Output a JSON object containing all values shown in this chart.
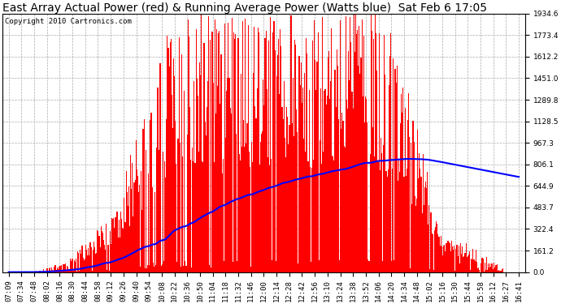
{
  "title": "East Array Actual Power (red) & Running Average Power (Watts blue)  Sat Feb 6 17:05",
  "copyright": "Copyright 2010 Cartronics.com",
  "ymax": 1934.6,
  "ymin": 0.0,
  "yticks": [
    0.0,
    161.2,
    322.4,
    483.7,
    644.9,
    806.1,
    967.3,
    1128.5,
    1289.8,
    1451.0,
    1612.2,
    1773.4,
    1934.6
  ],
  "xtick_labels": [
    "07:09",
    "07:34",
    "07:48",
    "08:02",
    "08:16",
    "08:30",
    "08:44",
    "08:58",
    "09:12",
    "09:26",
    "09:40",
    "09:54",
    "10:08",
    "10:22",
    "10:36",
    "10:50",
    "11:04",
    "11:18",
    "11:32",
    "11:46",
    "12:00",
    "12:14",
    "12:28",
    "12:42",
    "12:56",
    "13:10",
    "13:24",
    "13:38",
    "13:52",
    "14:06",
    "14:20",
    "14:34",
    "14:48",
    "15:02",
    "15:16",
    "15:30",
    "15:44",
    "15:58",
    "16:12",
    "16:27",
    "16:41"
  ],
  "background_color": "#ffffff",
  "bar_color": "#ff0000",
  "avg_line_color": "#0000ff",
  "grid_color": "#aaaaaa",
  "title_fontsize": 10,
  "tick_fontsize": 6.5,
  "copyright_fontsize": 6.5
}
